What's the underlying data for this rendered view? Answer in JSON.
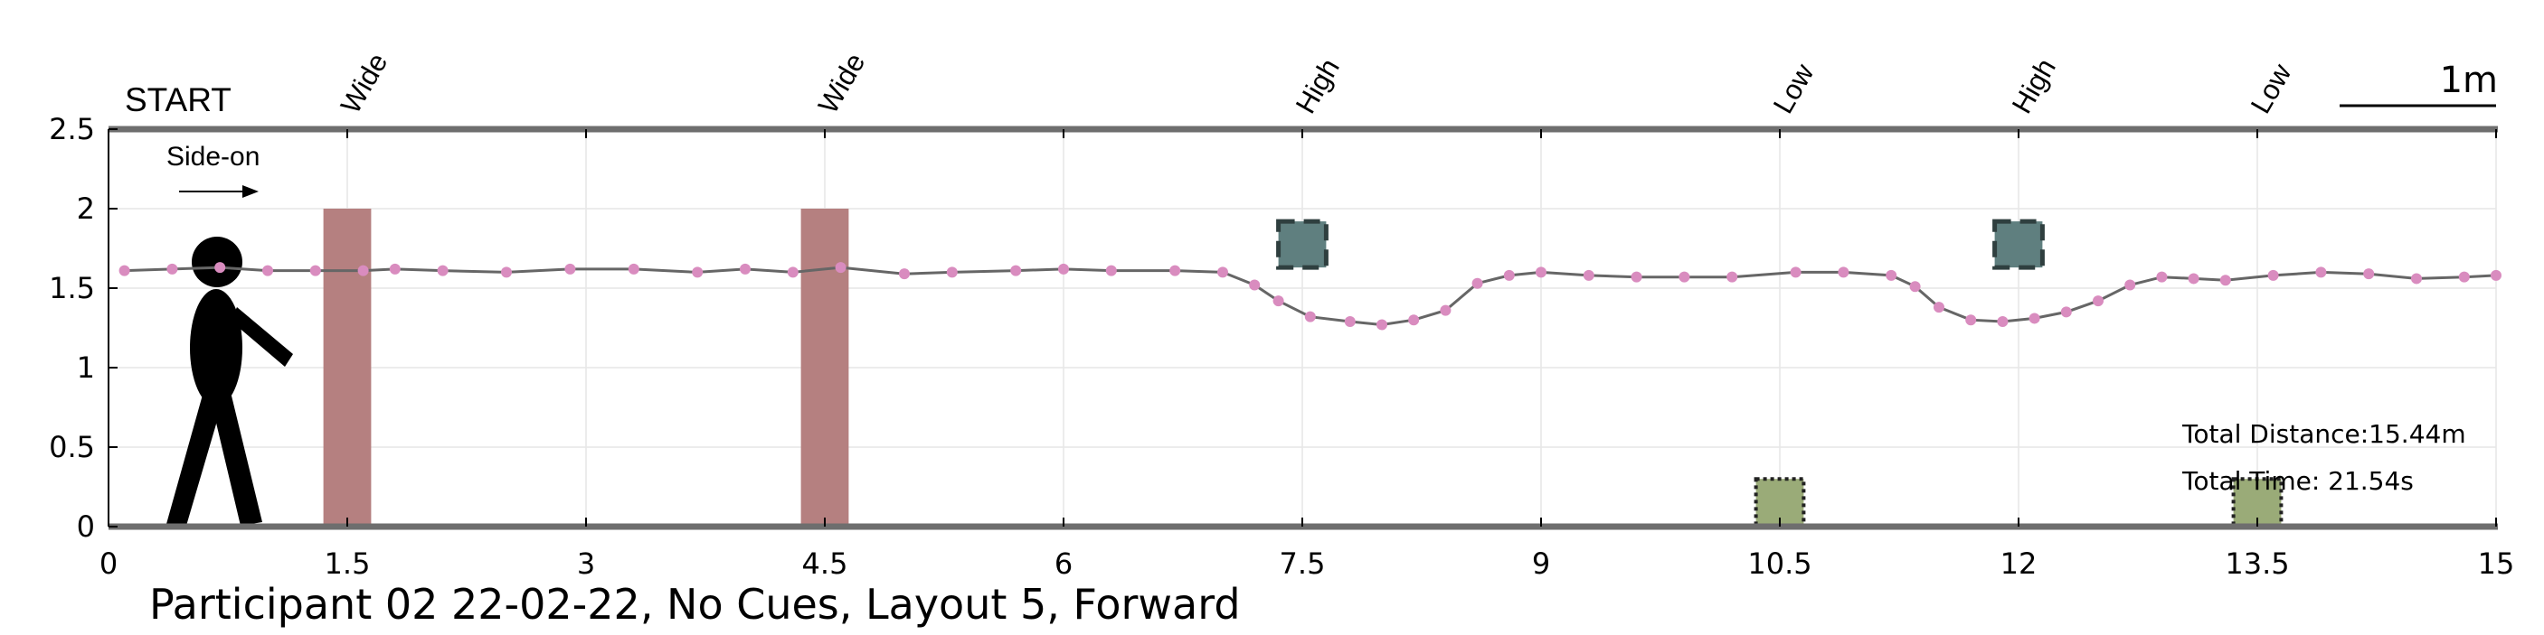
{
  "chart_data": {
    "type": "line",
    "title": "Participant 02 22-02-22, No Cues, Layout 5, Forward",
    "xlim": [
      0,
      15
    ],
    "ylim": [
      0,
      2.5
    ],
    "xticks": [
      0,
      1.5,
      3,
      4.5,
      6,
      7.5,
      9,
      10.5,
      12,
      13.5,
      15
    ],
    "xtick_labels": [
      "0",
      "1.5",
      "3",
      "4.5",
      "6",
      "7.5",
      "9",
      "10.5",
      "12",
      "13.5",
      "15"
    ],
    "yticks": [
      0,
      0.5,
      1,
      1.5,
      2,
      2.5
    ],
    "ytick_labels": [
      "0",
      "0.5",
      "1",
      "1.5",
      "2",
      "2.5"
    ],
    "grid": true,
    "start_label": "START",
    "view_label": "Side-on",
    "scale_bar_label": "1m",
    "obstacle_labels": [
      {
        "x": 1.5,
        "text": "Wide"
      },
      {
        "x": 4.5,
        "text": "Wide"
      },
      {
        "x": 7.5,
        "text": "High"
      },
      {
        "x": 10.5,
        "text": "Low"
      },
      {
        "x": 12,
        "text": "High"
      },
      {
        "x": 13.5,
        "text": "Low"
      }
    ],
    "obstacles": [
      {
        "type": "wide",
        "x0": 1.35,
        "x1": 1.65,
        "y0": 0,
        "y1": 2.0,
        "color": "#b58080"
      },
      {
        "type": "wide",
        "x0": 4.35,
        "x1": 4.65,
        "y0": 0,
        "y1": 2.0,
        "color": "#b58080"
      },
      {
        "type": "high",
        "x0": 7.35,
        "x1": 7.65,
        "y0": 1.63,
        "y1": 1.92,
        "color": "#5f7f7f"
      },
      {
        "type": "high",
        "x0": 11.85,
        "x1": 12.15,
        "y0": 1.63,
        "y1": 1.92,
        "color": "#5f7f7f"
      },
      {
        "type": "low",
        "x0": 10.35,
        "x1": 10.65,
        "y0": 0,
        "y1": 0.3,
        "color": "#9aab78"
      },
      {
        "type": "low",
        "x0": 13.35,
        "x1": 13.65,
        "y0": 0,
        "y1": 0.3,
        "color": "#9aab78"
      }
    ],
    "series": [
      {
        "color": "#666666",
        "marker_color": "#d98cbf",
        "points": [
          [
            0.1,
            1.61
          ],
          [
            0.4,
            1.62
          ],
          [
            0.7,
            1.63
          ],
          [
            1.0,
            1.61
          ],
          [
            1.3,
            1.61
          ],
          [
            1.6,
            1.61
          ],
          [
            1.8,
            1.62
          ],
          [
            2.1,
            1.61
          ],
          [
            2.5,
            1.6
          ],
          [
            2.9,
            1.62
          ],
          [
            3.3,
            1.62
          ],
          [
            3.7,
            1.6
          ],
          [
            4.0,
            1.62
          ],
          [
            4.3,
            1.6
          ],
          [
            4.6,
            1.63
          ],
          [
            5.0,
            1.59
          ],
          [
            5.3,
            1.6
          ],
          [
            5.7,
            1.61
          ],
          [
            6.0,
            1.62
          ],
          [
            6.3,
            1.61
          ],
          [
            6.7,
            1.61
          ],
          [
            7.0,
            1.6
          ],
          [
            7.2,
            1.52
          ],
          [
            7.35,
            1.42
          ],
          [
            7.55,
            1.32
          ],
          [
            7.8,
            1.29
          ],
          [
            8.0,
            1.27
          ],
          [
            8.2,
            1.3
          ],
          [
            8.4,
            1.36
          ],
          [
            8.6,
            1.53
          ],
          [
            8.8,
            1.58
          ],
          [
            9.0,
            1.6
          ],
          [
            9.3,
            1.58
          ],
          [
            9.6,
            1.57
          ],
          [
            9.9,
            1.57
          ],
          [
            10.2,
            1.57
          ],
          [
            10.6,
            1.6
          ],
          [
            10.9,
            1.6
          ],
          [
            11.2,
            1.58
          ],
          [
            11.35,
            1.51
          ],
          [
            11.5,
            1.38
          ],
          [
            11.7,
            1.3
          ],
          [
            11.9,
            1.29
          ],
          [
            12.1,
            1.31
          ],
          [
            12.3,
            1.35
          ],
          [
            12.5,
            1.42
          ],
          [
            12.7,
            1.52
          ],
          [
            12.9,
            1.57
          ],
          [
            13.1,
            1.56
          ],
          [
            13.3,
            1.55
          ],
          [
            13.6,
            1.58
          ],
          [
            13.9,
            1.6
          ],
          [
            14.2,
            1.59
          ],
          [
            14.5,
            1.56
          ],
          [
            14.8,
            1.57
          ],
          [
            15.0,
            1.58
          ]
        ]
      }
    ],
    "annotations": {
      "total_distance": "Total Distance:15.44m",
      "total_time": "Total Time: 21.54s"
    }
  }
}
